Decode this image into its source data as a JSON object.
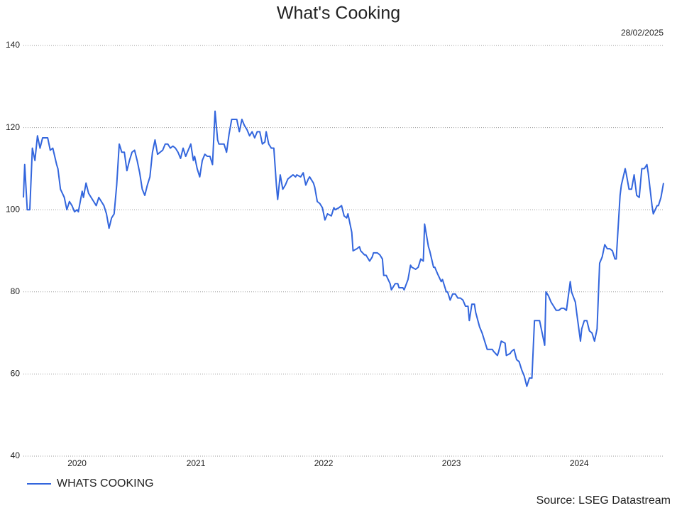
{
  "chart_data": {
    "type": "line",
    "title": "What's Cooking",
    "date": "28/02/2025",
    "source": "Source: LSEG Datastream",
    "xlim": [
      2020.15,
      2025.16
    ],
    "ylim": [
      40,
      140
    ],
    "xticks": [
      {
        "value": 2020.57,
        "label": "2020"
      },
      {
        "value": 2021.5,
        "label": "2021"
      },
      {
        "value": 2022.5,
        "label": "2022"
      },
      {
        "value": 2023.5,
        "label": "2023"
      },
      {
        "value": 2024.5,
        "label": "2024"
      }
    ],
    "yticks": [
      40,
      60,
      80,
      100,
      120,
      140
    ],
    "grid": true,
    "legend": "bottom-left",
    "x": [
      2020.15,
      2020.16,
      2020.18,
      2020.2,
      2020.22,
      2020.24,
      2020.26,
      2020.28,
      2020.3,
      2020.34,
      2020.36,
      2020.38,
      2020.41,
      2020.42,
      2020.44,
      2020.47,
      2020.49,
      2020.51,
      2020.53,
      2020.55,
      2020.57,
      2020.58,
      2020.61,
      2020.62,
      2020.64,
      2020.66,
      2020.68,
      2020.7,
      2020.72,
      2020.74,
      2020.76,
      2020.78,
      2020.8,
      2020.82,
      2020.84,
      2020.86,
      2020.88,
      2020.9,
      2020.92,
      2020.94,
      2020.96,
      2020.98,
      2021.0,
      2021.02,
      2021.04,
      2021.06,
      2021.08,
      2021.1,
      2021.12,
      2021.14,
      2021.16,
      2021.18,
      2021.2,
      2021.22,
      2021.24,
      2021.26,
      2021.28,
      2021.3,
      2021.32,
      2021.34,
      2021.36,
      2021.38,
      2021.4,
      2021.42,
      2021.44,
      2021.46,
      2021.48,
      2021.49,
      2021.51,
      2021.53,
      2021.55,
      2021.57,
      2021.59,
      2021.61,
      2021.63,
      2021.65,
      2021.67,
      2021.68,
      2021.71,
      2021.72,
      2021.74,
      2021.76,
      2021.78,
      2021.8,
      2021.82,
      2021.84,
      2021.86,
      2021.88,
      2021.9,
      2021.92,
      2021.94,
      2021.96,
      2021.98,
      2022.0,
      2022.02,
      2022.04,
      2022.05,
      2022.07,
      2022.09,
      2022.11,
      2022.13,
      2022.14,
      2022.16,
      2022.18,
      2022.2,
      2022.22,
      2022.24,
      2022.26,
      2022.28,
      2022.29,
      2022.32,
      2022.34,
      2022.36,
      2022.38,
      2022.39,
      2022.42,
      2022.43,
      2022.45,
      2022.47,
      2022.49,
      2022.51,
      2022.53,
      2022.56,
      2022.58,
      2022.59,
      2022.62,
      2022.64,
      2022.66,
      2022.68,
      2022.69,
      2022.72,
      2022.73,
      2022.76,
      2022.78,
      2022.79,
      2022.82,
      2022.83,
      2022.86,
      2022.88,
      2022.89,
      2022.92,
      2022.94,
      2022.96,
      2022.97,
      2022.99,
      2023.02,
      2023.03,
      2023.06,
      2023.08,
      2023.09,
      2023.12,
      2023.13,
      2023.16,
      2023.18,
      2023.19,
      2023.22,
      2023.24,
      2023.26,
      2023.28,
      2023.29,
      2023.32,
      2023.33,
      2023.36,
      2023.37,
      2023.39,
      2023.42,
      2023.43,
      2023.46,
      2023.47,
      2023.49,
      2023.51,
      2023.53,
      2023.55,
      2023.57,
      2023.59,
      2023.61,
      2023.63,
      2023.64,
      2023.66,
      2023.68,
      2023.69,
      2023.72,
      2023.74,
      2023.76,
      2023.78,
      2023.79,
      2023.82,
      2023.83,
      2023.86,
      2023.87,
      2023.89,
      2023.92,
      2023.93,
      2023.96,
      2023.97,
      2023.99,
      2024.01,
      2024.03,
      2024.05,
      2024.07,
      2024.09,
      2024.11,
      2024.13,
      2024.15,
      2024.17,
      2024.19,
      2024.21,
      2024.23,
      2024.24,
      2024.26,
      2024.28,
      2024.3,
      2024.32,
      2024.34,
      2024.36,
      2024.38,
      2024.4,
      2024.43,
      2024.44,
      2024.47,
      2024.48,
      2024.51,
      2024.52,
      2024.54,
      2024.56,
      2024.58,
      2024.6,
      2024.62,
      2024.64,
      2024.66,
      2024.68,
      2024.7,
      2024.72,
      2024.74,
      2024.76,
      2024.78,
      2024.79,
      2024.82,
      2024.83,
      2024.86,
      2024.87,
      2024.89,
      2024.91,
      2024.93,
      2024.95,
      2024.97,
      2024.99,
      2025.01,
      2025.03,
      2025.04,
      2025.07,
      2025.08,
      2025.11,
      2025.12,
      2025.14,
      2025.16
    ],
    "series": [
      {
        "name": "WHATS COOKING",
        "color": "#3366dd",
        "values": [
          103,
          111,
          100,
          100,
          115,
          112,
          118,
          115,
          117.5,
          117.5,
          114.5,
          115,
          111,
          110,
          105,
          103,
          100,
          102,
          101,
          99.5,
          100,
          99.5,
          104.5,
          103,
          106.5,
          104,
          103,
          102,
          101,
          103,
          102,
          101,
          99,
          95.5,
          98,
          99,
          106,
          116,
          114,
          114,
          109.5,
          112,
          114,
          114.5,
          112,
          109,
          105,
          103.5,
          106,
          108,
          114,
          117,
          113.5,
          114,
          114.5,
          116,
          116,
          115,
          115.5,
          115,
          114,
          112.5,
          115,
          113,
          114.5,
          116,
          112,
          113,
          110,
          108,
          112,
          113.5,
          113,
          113,
          111,
          124,
          117,
          116,
          116,
          116,
          114,
          118.5,
          122,
          122,
          122,
          119,
          122,
          120.5,
          119.5,
          118,
          119,
          117.5,
          119,
          119,
          116,
          116.5,
          119,
          116,
          115,
          115,
          106,
          102.5,
          108.5,
          105,
          106,
          107.5,
          108,
          108.5,
          108,
          108.5,
          108,
          109,
          106,
          107.5,
          108,
          106.5,
          105.5,
          102,
          101.5,
          100.5,
          97.5,
          99,
          98.5,
          100.5,
          100,
          100.5,
          101,
          98.5,
          98,
          99,
          94.5,
          90,
          90.5,
          91,
          90,
          89,
          89,
          87.5,
          88.5,
          89.5,
          89.5,
          89,
          88,
          84,
          84,
          82,
          80.5,
          82,
          82,
          81,
          81,
          80.5,
          83,
          86.5,
          86,
          85.5,
          86,
          88,
          87.5,
          96.5,
          91,
          90,
          86,
          86,
          84.5,
          82.5,
          83,
          80,
          80,
          78,
          79.5,
          79.5,
          78.5,
          78.5,
          78,
          76.5,
          76.5,
          73,
          77,
          77,
          75,
          71.5,
          70,
          68,
          66,
          66,
          66,
          65.5,
          64.5,
          65.5,
          68,
          67.5,
          64.5,
          65,
          65.5,
          66,
          63.5,
          63,
          61,
          59.5,
          57,
          59,
          59,
          73,
          73,
          73,
          70,
          67,
          80,
          79,
          77.5,
          76.5,
          75.5,
          75.5,
          76,
          76,
          75.5,
          82.5,
          80,
          77.5,
          75,
          68,
          71,
          73,
          73,
          70.5,
          70,
          68,
          71,
          87,
          88.5,
          91.5,
          90.5,
          90.5,
          90,
          88,
          88,
          103.5,
          106,
          110,
          108.5,
          105,
          105,
          108.5,
          103.5,
          103,
          110,
          110,
          111,
          109,
          101,
          99,
          101,
          101,
          103,
          106.5
        ]
      }
    ]
  }
}
